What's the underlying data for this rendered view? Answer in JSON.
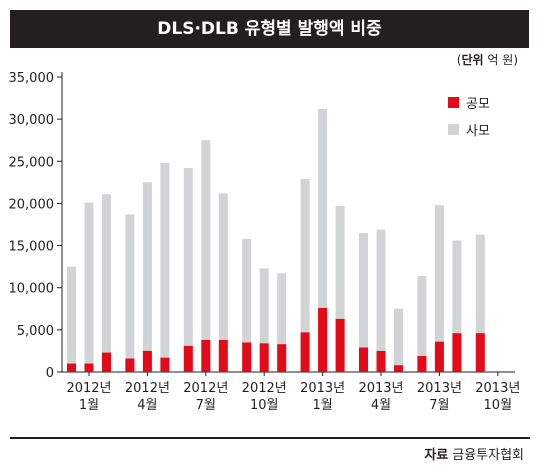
{
  "title": "DLS·DLB 유형별 발행액 비중",
  "unit": {
    "label": "단위",
    "value": "억 원"
  },
  "source": {
    "label": "자료",
    "value": "금융투자협회"
  },
  "colors": {
    "public": "#e30b17",
    "private": "#d1d3d4",
    "title_bg": "#231f20",
    "axis": "#231f20"
  },
  "chart_data": {
    "type": "bar",
    "stacked": true,
    "groups": [
      {
        "label": [
          "2012년",
          "1월"
        ],
        "public": [
          1000,
          1000,
          2300
        ],
        "private_total": [
          12500,
          20100,
          21100
        ]
      },
      {
        "label": [
          "2012년",
          "4월"
        ],
        "public": [
          1600,
          2500,
          1700
        ],
        "private_total": [
          18700,
          22500,
          24800
        ]
      },
      {
        "label": [
          "2012년",
          "7월"
        ],
        "public": [
          3100,
          3800,
          3800
        ],
        "private_total": [
          24200,
          27500,
          21200
        ]
      },
      {
        "label": [
          "2012년",
          "10월"
        ],
        "public": [
          3500,
          3400,
          3300
        ],
        "private_total": [
          15800,
          12300,
          11700
        ]
      },
      {
        "label": [
          "2013년",
          "1월"
        ],
        "public": [
          4700,
          7600,
          6300
        ],
        "private_total": [
          22900,
          31200,
          19700
        ]
      },
      {
        "label": [
          "2013년",
          "4월"
        ],
        "public": [
          2900,
          2500,
          800
        ],
        "private_total": [
          16500,
          16900,
          7500
        ]
      },
      {
        "label": [
          "2013년",
          "7월"
        ],
        "public": [
          1900,
          3600,
          4600
        ],
        "private_total": [
          11400,
          19800,
          15600
        ]
      },
      {
        "label": [
          "2013년",
          "10월"
        ],
        "public": [
          4600
        ],
        "private_total": [
          16300
        ]
      }
    ],
    "series": [
      {
        "name": "공모",
        "color": "#e30b17"
      },
      {
        "name": "사모",
        "color": "#d1d3d4"
      }
    ],
    "yticks": [
      "35,000",
      "30,000",
      "25,000",
      "20,000",
      "15,000",
      "10,000",
      "5,000",
      "0"
    ],
    "ytick_values": [
      35000,
      30000,
      25000,
      20000,
      15000,
      10000,
      5000,
      0
    ],
    "ylim": [
      0,
      35000
    ],
    "grid": false,
    "legend_position": "top-right"
  }
}
